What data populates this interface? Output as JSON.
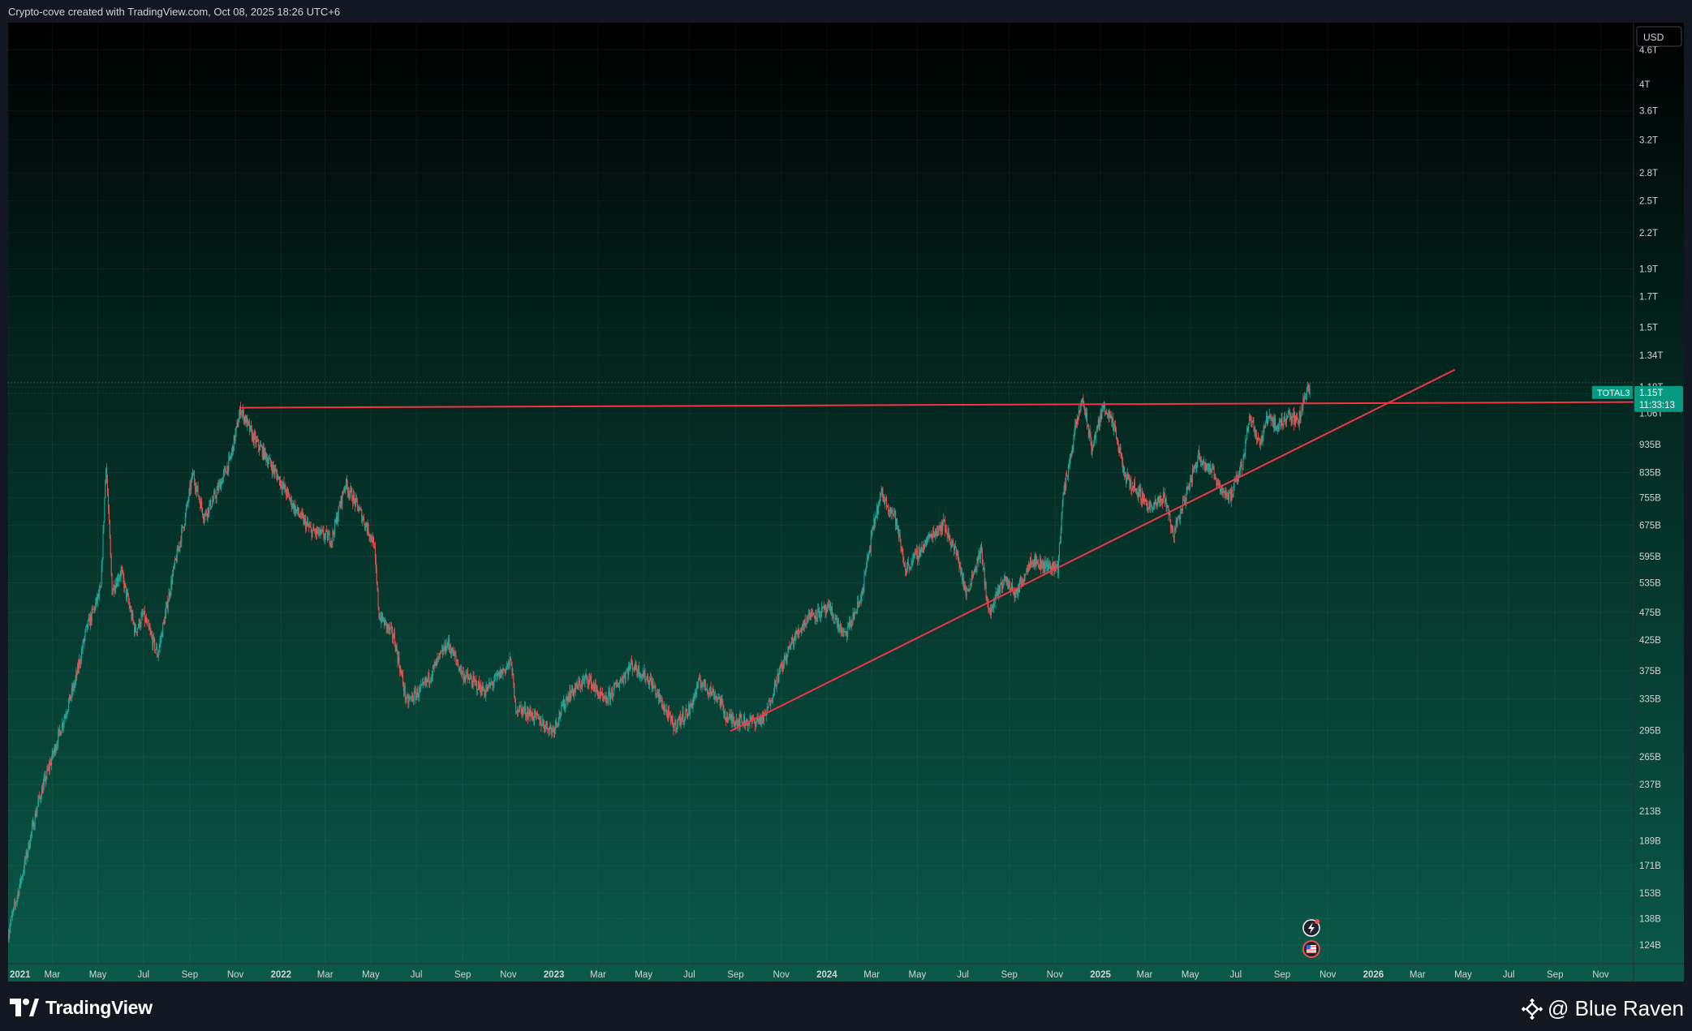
{
  "header": {
    "caption": "Crypto-cove created with TradingView.com, Oct 08, 2025 18:26 UTC+6"
  },
  "footer": {
    "brand": "TradingView",
    "watermark": "@ Blue Raven"
  },
  "colors": {
    "up": "#26a69a",
    "down": "#ef5350",
    "trendline": "#f23645",
    "accent": "#089981",
    "axis_text": "#d1d4dc"
  },
  "chart_data": {
    "type": "candlestick",
    "symbol": "TOTAL3",
    "currency": "USD",
    "y_scale": "log",
    "ylim": [
      115,
      5100
    ],
    "x_range": [
      "2021-01-01",
      "2026-12-15"
    ],
    "grid": true,
    "y_ticks": [
      "4.6T",
      "4T",
      "3.6T",
      "3.2T",
      "2.8T",
      "2.5T",
      "2.2T",
      "1.9T",
      "1.7T",
      "1.5T",
      "1.34T",
      "1.18T",
      "1.06T",
      "935B",
      "835B",
      "755B",
      "675B",
      "595B",
      "535B",
      "475B",
      "425B",
      "375B",
      "335B",
      "295B",
      "265B",
      "237B",
      "213B",
      "189B",
      "171B",
      "153B",
      "138B",
      "124B"
    ],
    "y_tick_values": [
      4600,
      4000,
      3600,
      3200,
      2800,
      2500,
      2200,
      1900,
      1700,
      1500,
      1340,
      1180,
      1060,
      935,
      835,
      755,
      675,
      595,
      535,
      475,
      425,
      375,
      335,
      295,
      265,
      237,
      213,
      189,
      171,
      153,
      138,
      124
    ],
    "x_ticks": [
      "2021",
      "Mar",
      "May",
      "Jul",
      "Sep",
      "Nov",
      "2022",
      "Mar",
      "May",
      "Jul",
      "Sep",
      "Nov",
      "2023",
      "Mar",
      "May",
      "Jul",
      "Sep",
      "Nov",
      "2024",
      "Mar",
      "May",
      "Jul",
      "Sep",
      "Nov",
      "2025",
      "Mar",
      "May",
      "Jul",
      "Sep",
      "Nov",
      "2026",
      "Mar",
      "May",
      "Jul",
      "Sep",
      "Nov"
    ],
    "x_tick_dates": [
      "2021-01-01",
      "2021-03-01",
      "2021-05-01",
      "2021-07-01",
      "2021-09-01",
      "2021-11-01",
      "2022-01-01",
      "2022-03-01",
      "2022-05-01",
      "2022-07-01",
      "2022-09-01",
      "2022-11-01",
      "2023-01-01",
      "2023-03-01",
      "2023-05-01",
      "2023-07-01",
      "2023-09-01",
      "2023-11-01",
      "2024-01-01",
      "2024-03-01",
      "2024-05-01",
      "2024-07-01",
      "2024-09-01",
      "2024-11-01",
      "2025-01-01",
      "2025-03-01",
      "2025-05-01",
      "2025-07-01",
      "2025-09-01",
      "2025-11-01",
      "2026-01-01",
      "2026-03-01",
      "2026-05-01",
      "2026-07-01",
      "2026-09-01",
      "2026-11-01"
    ],
    "bold_x_ticks": [
      "2021",
      "2022",
      "2023",
      "2024",
      "2025",
      "2026"
    ],
    "price_path": [
      [
        "2021-01-01",
        130
      ],
      [
        "2021-01-20",
        165
      ],
      [
        "2021-02-10",
        220
      ],
      [
        "2021-02-25",
        255
      ],
      [
        "2021-03-10",
        290
      ],
      [
        "2021-04-01",
        360
      ],
      [
        "2021-04-15",
        440
      ],
      [
        "2021-05-05",
        520
      ],
      [
        "2021-05-12",
        870
      ],
      [
        "2021-05-20",
        520
      ],
      [
        "2021-06-01",
        560
      ],
      [
        "2021-06-20",
        440
      ],
      [
        "2021-07-01",
        470
      ],
      [
        "2021-07-20",
        400
      ],
      [
        "2021-08-10",
        560
      ],
      [
        "2021-08-25",
        690
      ],
      [
        "2021-09-05",
        830
      ],
      [
        "2021-09-20",
        700
      ],
      [
        "2021-10-05",
        760
      ],
      [
        "2021-10-25",
        880
      ],
      [
        "2021-11-08",
        1080
      ],
      [
        "2021-11-25",
        960
      ],
      [
        "2021-12-10",
        900
      ],
      [
        "2021-12-28",
        820
      ],
      [
        "2022-01-20",
        720
      ],
      [
        "2022-02-10",
        660
      ],
      [
        "2022-03-10",
        640
      ],
      [
        "2022-03-28",
        800
      ],
      [
        "2022-04-15",
        720
      ],
      [
        "2022-05-05",
        630
      ],
      [
        "2022-05-12",
        470
      ],
      [
        "2022-06-01",
        430
      ],
      [
        "2022-06-18",
        330
      ],
      [
        "2022-07-10",
        350
      ],
      [
        "2022-08-12",
        420
      ],
      [
        "2022-09-01",
        370
      ],
      [
        "2022-10-01",
        345
      ],
      [
        "2022-11-05",
        390
      ],
      [
        "2022-11-10",
        325
      ],
      [
        "2022-12-01",
        315
      ],
      [
        "2022-12-30",
        295
      ],
      [
        "2023-01-20",
        340
      ],
      [
        "2023-02-15",
        365
      ],
      [
        "2023-03-10",
        330
      ],
      [
        "2023-04-15",
        385
      ],
      [
        "2023-05-10",
        360
      ],
      [
        "2023-06-10",
        300
      ],
      [
        "2023-07-01",
        320
      ],
      [
        "2023-07-15",
        360
      ],
      [
        "2023-08-10",
        335
      ],
      [
        "2023-08-20",
        310
      ],
      [
        "2023-09-20",
        305
      ],
      [
        "2023-10-10",
        310
      ],
      [
        "2023-10-25",
        360
      ],
      [
        "2023-11-15",
        420
      ],
      [
        "2023-12-08",
        470
      ],
      [
        "2024-01-05",
        480
      ],
      [
        "2024-01-25",
        430
      ],
      [
        "2024-02-15",
        500
      ],
      [
        "2024-03-05",
        690
      ],
      [
        "2024-03-14",
        765
      ],
      [
        "2024-04-01",
        700
      ],
      [
        "2024-04-15",
        565
      ],
      [
        "2024-05-01",
        600
      ],
      [
        "2024-05-20",
        650
      ],
      [
        "2024-06-05",
        680
      ],
      [
        "2024-06-25",
        590
      ],
      [
        "2024-07-05",
        510
      ],
      [
        "2024-07-25",
        610
      ],
      [
        "2024-08-05",
        470
      ],
      [
        "2024-08-25",
        545
      ],
      [
        "2024-09-10",
        510
      ],
      [
        "2024-09-30",
        590
      ],
      [
        "2024-10-15",
        575
      ],
      [
        "2024-11-05",
        570
      ],
      [
        "2024-11-12",
        760
      ],
      [
        "2024-11-28",
        990
      ],
      [
        "2024-12-08",
        1130
      ],
      [
        "2024-12-20",
        920
      ],
      [
        "2025-01-06",
        1100
      ],
      [
        "2025-01-20",
        990
      ],
      [
        "2025-02-03",
        820
      ],
      [
        "2025-02-25",
        760
      ],
      [
        "2025-03-10",
        720
      ],
      [
        "2025-03-28",
        760
      ],
      [
        "2025-04-08",
        650
      ],
      [
        "2025-04-25",
        760
      ],
      [
        "2025-05-12",
        895
      ],
      [
        "2025-05-30",
        840
      ],
      [
        "2025-06-15",
        770
      ],
      [
        "2025-06-25",
        760
      ],
      [
        "2025-07-10",
        870
      ],
      [
        "2025-07-20",
        1060
      ],
      [
        "2025-08-02",
        930
      ],
      [
        "2025-08-14",
        1060
      ],
      [
        "2025-08-25",
        1000
      ],
      [
        "2025-09-10",
        1060
      ],
      [
        "2025-09-22",
        1020
      ],
      [
        "2025-10-06",
        1200
      ],
      [
        "2025-10-08",
        1150
      ]
    ],
    "trendlines": [
      {
        "type": "horizontal_resistance",
        "from": [
          "2021-11-08",
          1085
        ],
        "to": [
          "2026-12-15",
          1110
        ]
      },
      {
        "type": "ascending_support",
        "from": [
          "2023-08-25",
          294
        ],
        "to": [
          "2026-04-20",
          1265
        ]
      }
    ],
    "last_price": {
      "label": "TOTAL3",
      "value": "1.15T",
      "countdown": "11:33:13",
      "numeric": 1150
    },
    "dotted_level": 1200,
    "events": [
      {
        "date": "2025-10-10",
        "icon": "flash-icon"
      },
      {
        "date": "2025-10-10",
        "icon": "us-flag-icon"
      }
    ]
  }
}
